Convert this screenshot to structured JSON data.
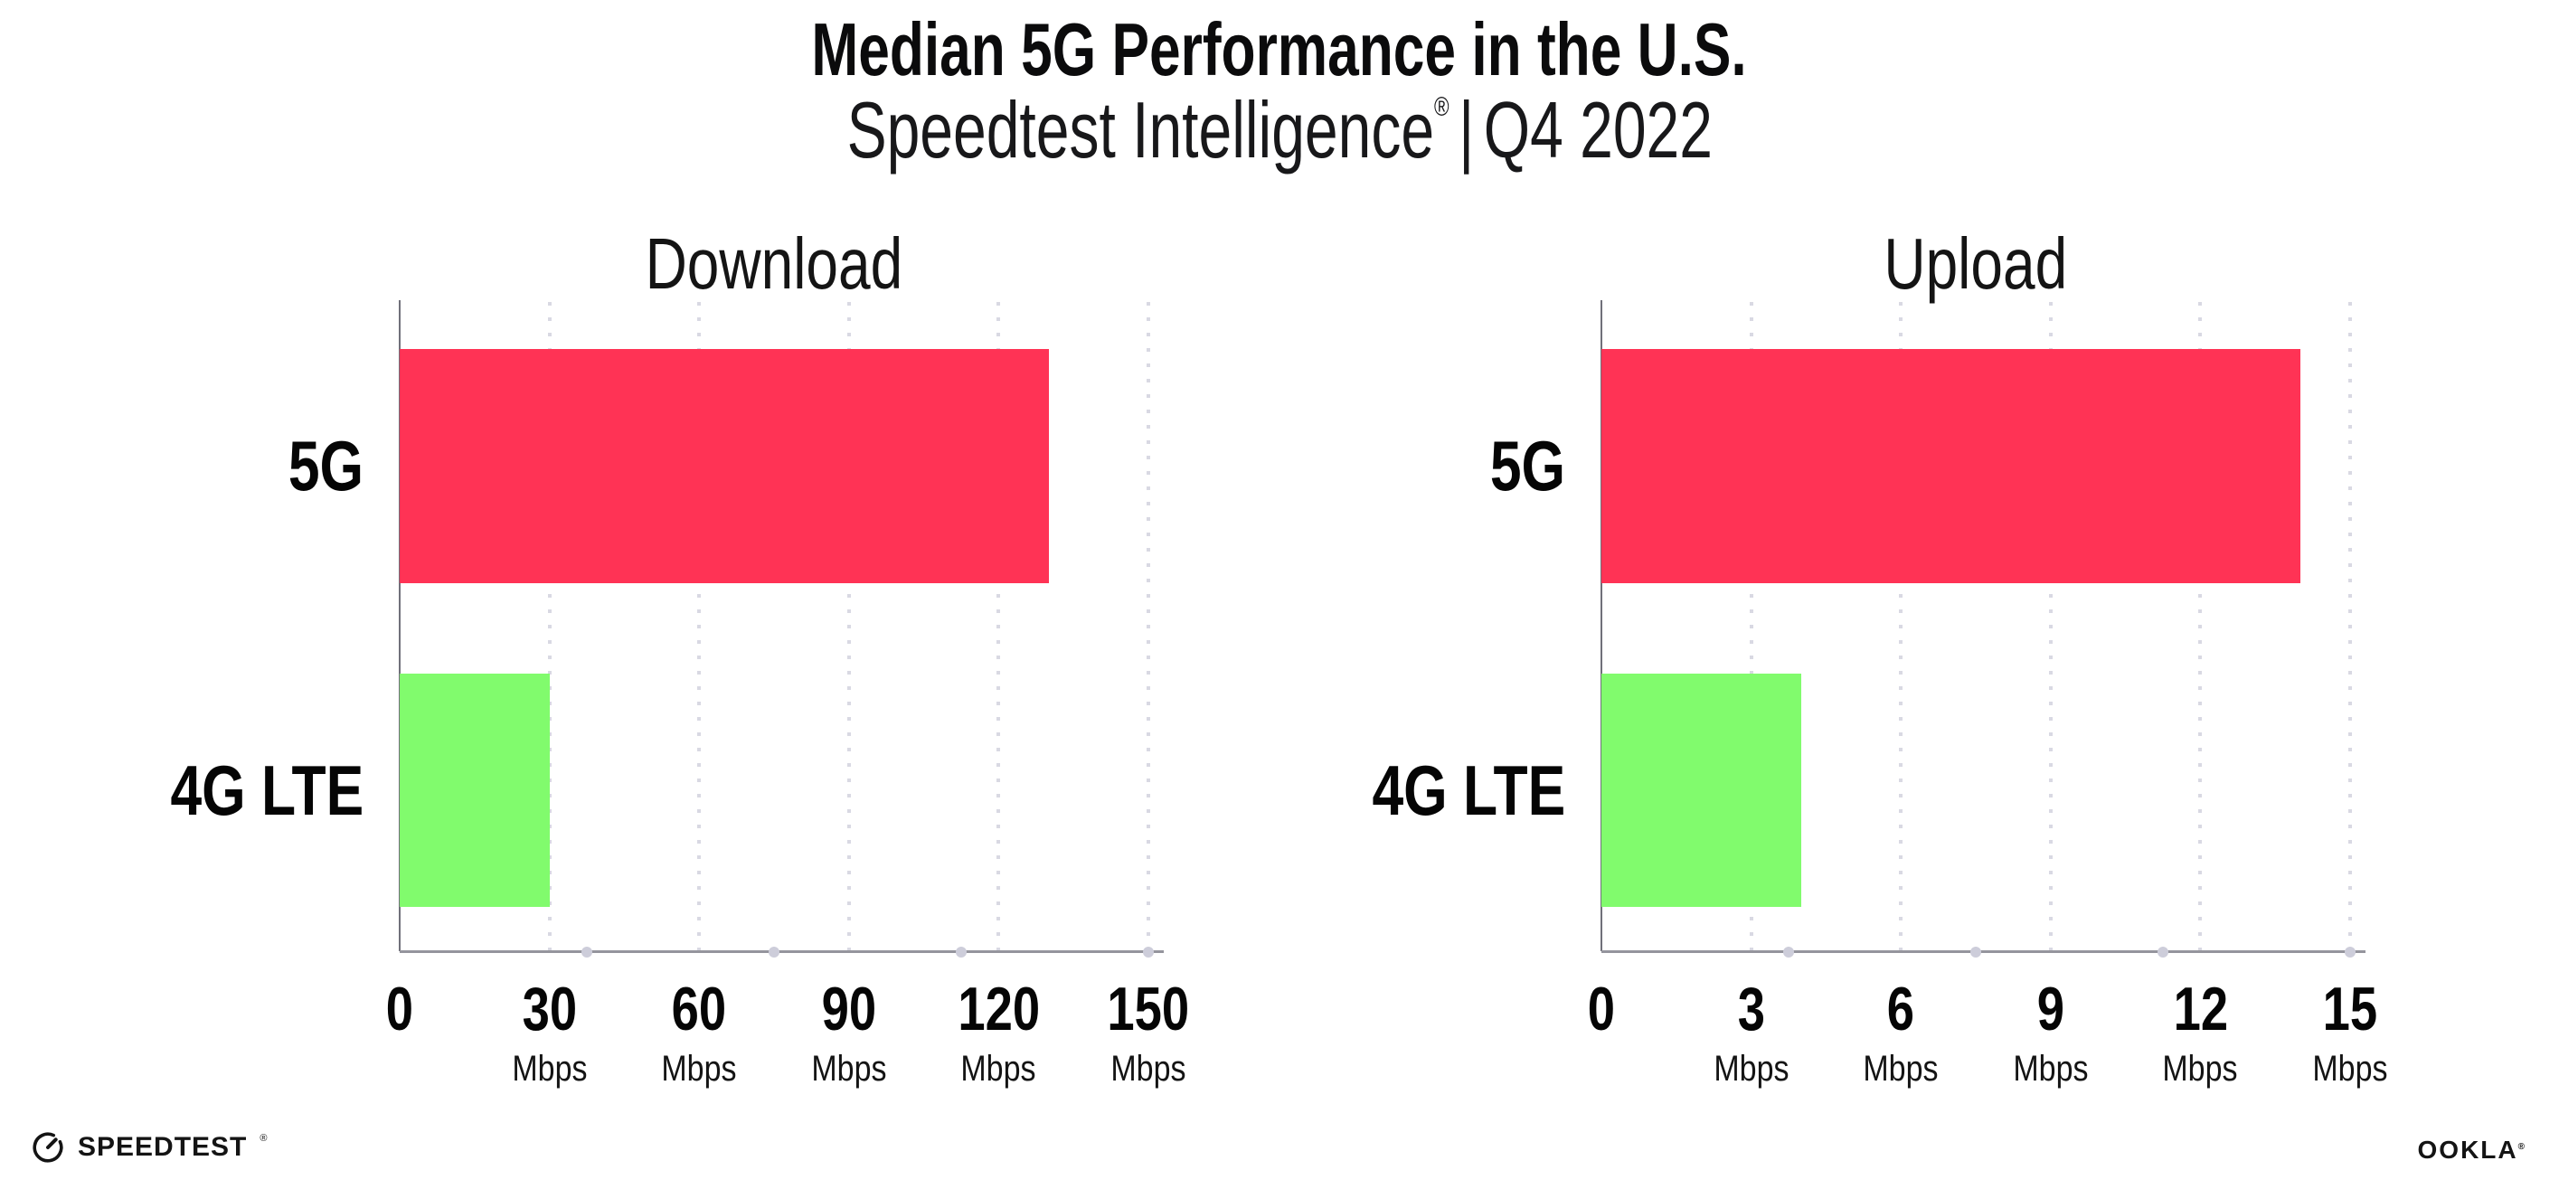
{
  "header": {
    "title": "Median 5G Performance in the U.S.",
    "subtitle_brand": "Speedtest Intelligence",
    "subtitle_reg": "®",
    "subtitle_sep": "|",
    "subtitle_period": "Q4 2022"
  },
  "footer": {
    "speedtest_wordmark": "SPEEDTEST",
    "speedtest_reg": "®",
    "ookla_wordmark": "OOKLA",
    "ookla_reg": "®"
  },
  "colors": {
    "bar_5g": "#FF3355",
    "bar_4g_lte": "#81FB6D",
    "gridline": "#D9D9E3",
    "x_axis": "#95959D",
    "y_axis": "#70707A",
    "text": "#0B0B0C"
  },
  "chart_data": [
    {
      "type": "bar",
      "orientation": "horizontal",
      "title": "Download",
      "categories": [
        "5G",
        "4G LTE"
      ],
      "values": [
        130,
        30
      ],
      "unit": "Mbps",
      "xlim": [
        0,
        150
      ],
      "xticks": [
        0,
        30,
        60,
        90,
        120,
        150
      ],
      "bar_colors": [
        "#FF3355",
        "#81FB6D"
      ],
      "grid": "vertical-dotted",
      "legend": "none"
    },
    {
      "type": "bar",
      "orientation": "horizontal",
      "title": "Upload",
      "categories": [
        "5G",
        "4G LTE"
      ],
      "values": [
        14,
        4
      ],
      "unit": "Mbps",
      "xlim": [
        0,
        15
      ],
      "xticks": [
        0,
        3,
        6,
        9,
        12,
        15
      ],
      "bar_colors": [
        "#FF3355",
        "#81FB6D"
      ],
      "grid": "vertical-dotted",
      "legend": "none"
    }
  ]
}
